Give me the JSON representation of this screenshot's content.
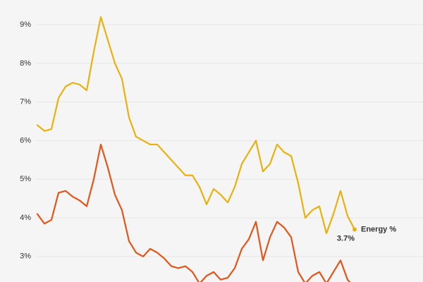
{
  "chart_data": {
    "type": "line",
    "ylim": [
      2.34,
      9.64
    ],
    "yticks": [
      {
        "value": 3,
        "label": "3%"
      },
      {
        "value": 4,
        "label": "4%"
      },
      {
        "value": 5,
        "label": "5%"
      },
      {
        "value": 6,
        "label": "6%"
      },
      {
        "value": 7,
        "label": "7%"
      },
      {
        "value": 8,
        "label": "8%"
      },
      {
        "value": 9,
        "label": "9%"
      }
    ],
    "grid": true,
    "series": [
      {
        "name": "Energy %",
        "color": "#e8b10e",
        "values": [
          6.4,
          6.25,
          6.3,
          7.1,
          7.4,
          7.5,
          7.45,
          7.3,
          8.3,
          9.2,
          8.6,
          8.0,
          7.6,
          6.6,
          6.1,
          6.0,
          5.9,
          5.9,
          5.7,
          5.5,
          5.3,
          5.1,
          5.1,
          4.8,
          4.35,
          4.75,
          4.6,
          4.4,
          4.8,
          5.4,
          5.7,
          6.0,
          5.2,
          5.4,
          5.9,
          5.7,
          5.6,
          4.9,
          4.0,
          4.2,
          4.3,
          3.6,
          4.1,
          4.7,
          4.05,
          3.7
        ],
        "value_labels": [
          null,
          null,
          null,
          null,
          null,
          null,
          null,
          null,
          null,
          null,
          null,
          null,
          null,
          null,
          null,
          null,
          null,
          null,
          null,
          null,
          null,
          null,
          null,
          null,
          null,
          null,
          null,
          null,
          null,
          null,
          null,
          null,
          null,
          null,
          null,
          null,
          null,
          null,
          null,
          null,
          null,
          null,
          null,
          null,
          null,
          "3.7%"
        ]
      },
      {
        "color": "#e2561a",
        "values": [
          4.1,
          3.85,
          3.95,
          4.65,
          4.7,
          4.55,
          4.45,
          4.3,
          5.0,
          5.9,
          5.3,
          4.6,
          4.2,
          3.4,
          3.1,
          3.0,
          3.2,
          3.1,
          2.95,
          2.75,
          2.7,
          2.75,
          2.6,
          2.3,
          2.5,
          2.6,
          2.4,
          2.45,
          2.7,
          3.2,
          3.45,
          3.9,
          2.9,
          3.5,
          3.9,
          3.75,
          3.5,
          2.6,
          2.3,
          2.5,
          2.6,
          2.3,
          2.6,
          2.9,
          2.4,
          2.2
        ]
      }
    ]
  }
}
